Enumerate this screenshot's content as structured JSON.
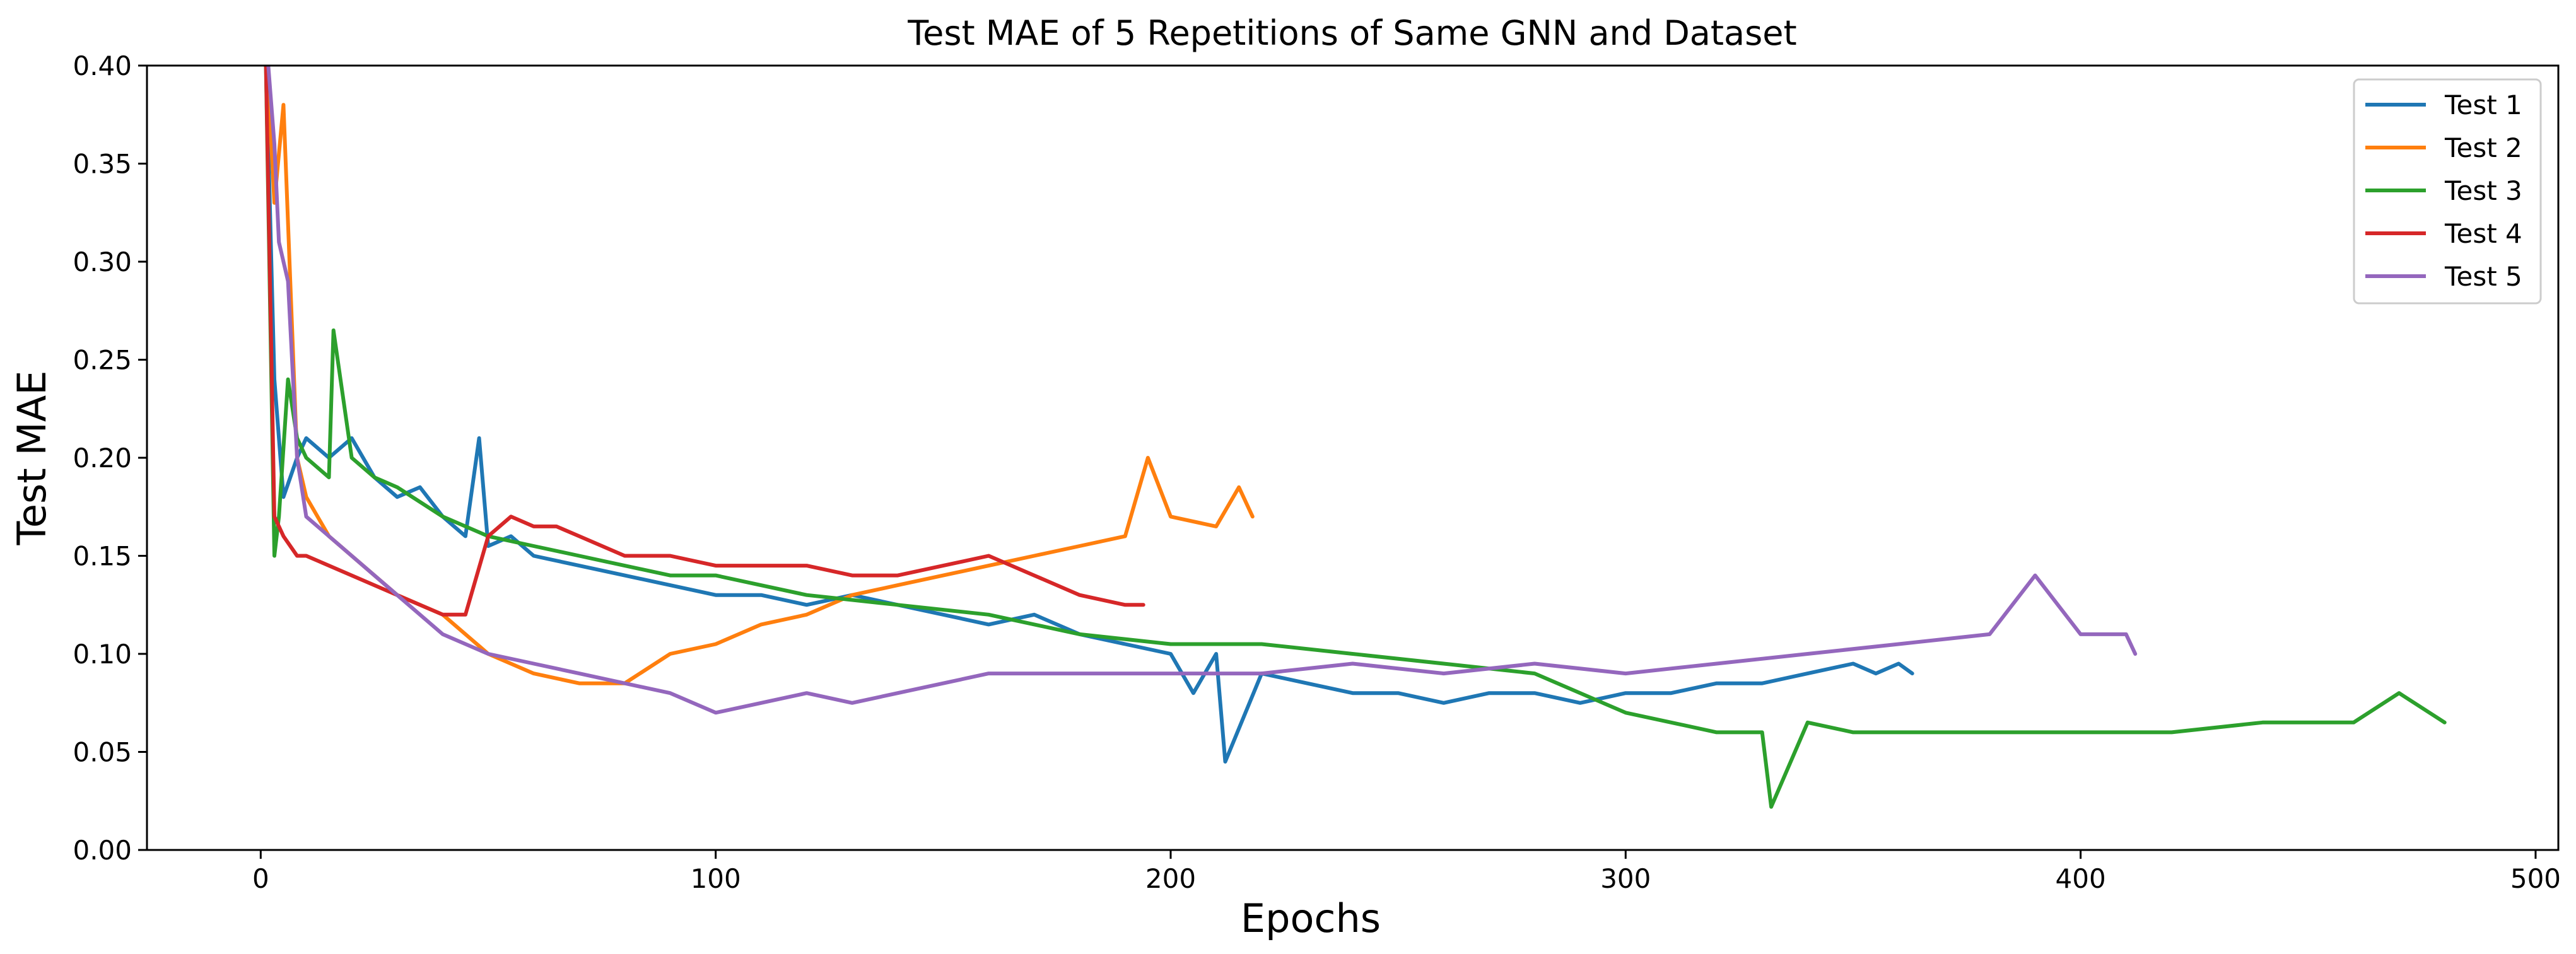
{
  "chart_data": {
    "type": "line",
    "title": "Test MAE of 5 Repetitions of Same GNN and Dataset",
    "xlabel": "Epochs",
    "ylabel": "Test MAE",
    "xlim": [
      -25,
      505
    ],
    "ylim": [
      0.0,
      0.4
    ],
    "xticks": [
      0,
      100,
      200,
      300,
      400,
      500
    ],
    "yticks": [
      0.0,
      0.05,
      0.1,
      0.15,
      0.2,
      0.25,
      0.3,
      0.35,
      0.4
    ],
    "xtick_labels": [
      "0",
      "100",
      "200",
      "300",
      "400",
      "500"
    ],
    "ytick_labels": [
      "0.00",
      "0.05",
      "0.10",
      "0.15",
      "0.20",
      "0.25",
      "0.30",
      "0.35",
      "0.40"
    ],
    "grid": false,
    "legend_position": "top-right",
    "series": [
      {
        "name": "Test 1",
        "color": "#1f77b4",
        "x": [
          1,
          3,
          5,
          8,
          10,
          15,
          20,
          25,
          30,
          35,
          40,
          45,
          48,
          50,
          55,
          60,
          70,
          80,
          90,
          100,
          110,
          120,
          130,
          140,
          150,
          160,
          170,
          180,
          190,
          200,
          205,
          210,
          212,
          220,
          230,
          240,
          250,
          260,
          270,
          280,
          290,
          300,
          310,
          320,
          330,
          340,
          350,
          355,
          360,
          363
        ],
        "y": [
          0.42,
          0.24,
          0.18,
          0.2,
          0.21,
          0.2,
          0.21,
          0.19,
          0.18,
          0.185,
          0.17,
          0.16,
          0.21,
          0.155,
          0.16,
          0.15,
          0.145,
          0.14,
          0.135,
          0.13,
          0.13,
          0.125,
          0.13,
          0.125,
          0.12,
          0.115,
          0.12,
          0.11,
          0.105,
          0.1,
          0.08,
          0.1,
          0.045,
          0.09,
          0.085,
          0.08,
          0.08,
          0.075,
          0.08,
          0.08,
          0.075,
          0.08,
          0.08,
          0.085,
          0.085,
          0.09,
          0.095,
          0.09,
          0.095,
          0.09
        ]
      },
      {
        "name": "Test 2",
        "color": "#ff7f0e",
        "x": [
          1,
          3,
          5,
          8,
          10,
          15,
          20,
          30,
          40,
          50,
          60,
          70,
          80,
          90,
          100,
          110,
          120,
          130,
          140,
          150,
          160,
          170,
          180,
          190,
          195,
          200,
          210,
          215,
          218
        ],
        "y": [
          0.42,
          0.33,
          0.38,
          0.2,
          0.18,
          0.16,
          0.15,
          0.13,
          0.12,
          0.1,
          0.09,
          0.085,
          0.085,
          0.1,
          0.105,
          0.115,
          0.12,
          0.13,
          0.135,
          0.14,
          0.145,
          0.15,
          0.155,
          0.16,
          0.2,
          0.17,
          0.165,
          0.185,
          0.17
        ]
      },
      {
        "name": "Test 3",
        "color": "#2ca02c",
        "x": [
          1,
          3,
          4,
          6,
          8,
          10,
          15,
          16,
          20,
          25,
          30,
          40,
          50,
          60,
          70,
          80,
          90,
          100,
          120,
          140,
          160,
          180,
          200,
          220,
          240,
          260,
          280,
          300,
          310,
          320,
          330,
          332,
          340,
          350,
          360,
          380,
          400,
          420,
          440,
          460,
          470,
          480
        ],
        "y": [
          0.42,
          0.15,
          0.17,
          0.24,
          0.21,
          0.2,
          0.19,
          0.265,
          0.2,
          0.19,
          0.185,
          0.17,
          0.16,
          0.155,
          0.15,
          0.145,
          0.14,
          0.14,
          0.13,
          0.125,
          0.12,
          0.11,
          0.105,
          0.105,
          0.1,
          0.095,
          0.09,
          0.07,
          0.065,
          0.06,
          0.06,
          0.022,
          0.065,
          0.06,
          0.06,
          0.06,
          0.06,
          0.06,
          0.065,
          0.065,
          0.08,
          0.065
        ]
      },
      {
        "name": "Test 4",
        "color": "#d62728",
        "x": [
          1,
          3,
          5,
          8,
          10,
          20,
          30,
          40,
          45,
          50,
          55,
          60,
          65,
          70,
          80,
          90,
          100,
          110,
          120,
          130,
          140,
          150,
          160,
          170,
          180,
          190,
          194
        ],
        "y": [
          0.42,
          0.17,
          0.16,
          0.15,
          0.15,
          0.14,
          0.13,
          0.12,
          0.12,
          0.16,
          0.17,
          0.165,
          0.165,
          0.16,
          0.15,
          0.15,
          0.145,
          0.145,
          0.145,
          0.14,
          0.14,
          0.145,
          0.15,
          0.14,
          0.13,
          0.125,
          0.125
        ]
      },
      {
        "name": "Test 5",
        "color": "#9467bd",
        "x": [
          1,
          3,
          4,
          6,
          8,
          10,
          20,
          30,
          40,
          50,
          60,
          70,
          80,
          90,
          100,
          110,
          120,
          130,
          140,
          150,
          160,
          180,
          200,
          220,
          240,
          260,
          280,
          300,
          320,
          340,
          360,
          380,
          390,
          400,
          410,
          412
        ],
        "y": [
          0.42,
          0.36,
          0.31,
          0.29,
          0.2,
          0.17,
          0.15,
          0.13,
          0.11,
          0.1,
          0.095,
          0.09,
          0.085,
          0.08,
          0.07,
          0.075,
          0.08,
          0.075,
          0.08,
          0.085,
          0.09,
          0.09,
          0.09,
          0.09,
          0.095,
          0.09,
          0.095,
          0.09,
          0.095,
          0.1,
          0.105,
          0.11,
          0.14,
          0.11,
          0.11,
          0.1
        ]
      }
    ]
  }
}
